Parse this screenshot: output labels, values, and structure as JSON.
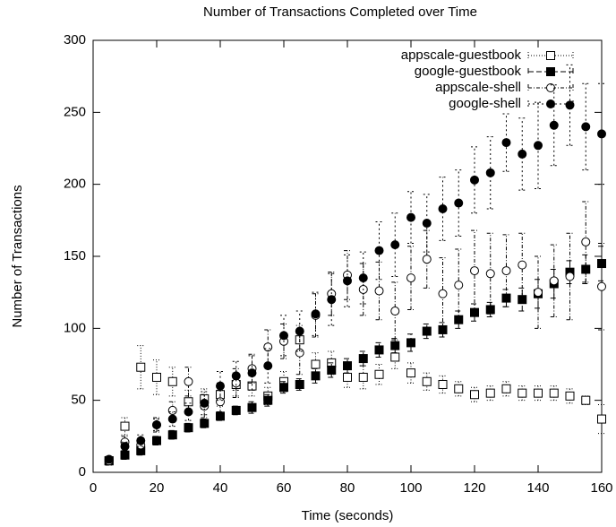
{
  "chart_data": {
    "type": "errorbar-scatter",
    "title": "Number of Transactions Completed over Time",
    "xlabel": "Time (seconds)",
    "ylabel": "Number of Transactions",
    "xlim": [
      0,
      160
    ],
    "xticks": [
      0,
      20,
      40,
      60,
      80,
      100,
      120,
      140,
      160
    ],
    "ylim": [
      0,
      300
    ],
    "yticks": [
      0,
      50,
      100,
      150,
      200,
      250,
      300
    ],
    "legend": "top-right",
    "x": [
      5,
      10,
      15,
      20,
      25,
      30,
      35,
      40,
      45,
      50,
      55,
      60,
      65,
      70,
      75,
      80,
      85,
      90,
      95,
      100,
      105,
      110,
      115,
      120,
      125,
      130,
      135,
      140,
      145,
      150,
      155,
      160
    ],
    "series": [
      {
        "name": "appscale-guestbook",
        "color": "#000000",
        "marker": "square-open",
        "dash": "1,2",
        "values": [
          8,
          32,
          73,
          66,
          63,
          49,
          51,
          54,
          61,
          60,
          53,
          63,
          92,
          75,
          76,
          66,
          66,
          68,
          80,
          69,
          63,
          61,
          58,
          54,
          55,
          58,
          55,
          55,
          55,
          53,
          50,
          37
        ],
        "errors": [
          2,
          6,
          15,
          12,
          10,
          8,
          7,
          8,
          8,
          7,
          6,
          7,
          10,
          8,
          8,
          7,
          8,
          7,
          8,
          7,
          6,
          6,
          5,
          5,
          5,
          5,
          5,
          5,
          5,
          5,
          3,
          10
        ]
      },
      {
        "name": "google-guestbook",
        "color": "#000000",
        "marker": "square-filled",
        "dash": "6,3",
        "values": [
          8,
          12,
          15,
          22,
          26,
          31,
          34,
          39,
          43,
          45,
          50,
          59,
          61,
          67,
          71,
          74,
          79,
          85,
          88,
          90,
          98,
          99,
          106,
          111,
          113,
          121,
          120,
          124,
          131,
          139,
          141,
          145
        ],
        "errors": [
          2,
          3,
          3,
          3,
          3,
          3,
          3,
          3,
          3,
          4,
          4,
          4,
          4,
          5,
          5,
          5,
          5,
          5,
          5,
          6,
          5,
          5,
          6,
          6,
          5,
          6,
          8,
          10,
          10,
          8,
          10,
          12
        ]
      },
      {
        "name": "appscale-shell",
        "color": "#000000",
        "marker": "circle-open",
        "dash": "4,2,1,2",
        "values": [
          8,
          21,
          19,
          33,
          43,
          63,
          46,
          49,
          62,
          72,
          87,
          91,
          83,
          109,
          124,
          137,
          127,
          126,
          112,
          135,
          148,
          124,
          130,
          140,
          138,
          140,
          144,
          125,
          133,
          136,
          160,
          129
        ],
        "errors": [
          3,
          4,
          4,
          5,
          6,
          10,
          8,
          8,
          10,
          10,
          12,
          12,
          15,
          15,
          15,
          17,
          18,
          20,
          20,
          22,
          20,
          25,
          25,
          28,
          28,
          25,
          22,
          25,
          25,
          30,
          28,
          30
        ]
      },
      {
        "name": "google-shell",
        "color": "#000000",
        "marker": "circle-filled",
        "dash": "2,3",
        "values": [
          9,
          18,
          22,
          33,
          37,
          42,
          48,
          60,
          67,
          69,
          74,
          95,
          98,
          110,
          120,
          133,
          135,
          154,
          158,
          177,
          173,
          183,
          187,
          203,
          208,
          229,
          221,
          227,
          241,
          255,
          240,
          235
        ],
        "errors": [
          2,
          3,
          4,
          4,
          5,
          6,
          8,
          10,
          10,
          12,
          12,
          14,
          14,
          15,
          18,
          18,
          18,
          20,
          22,
          18,
          20,
          22,
          23,
          23,
          25,
          20,
          25,
          30,
          28,
          28,
          30,
          35
        ]
      }
    ]
  }
}
